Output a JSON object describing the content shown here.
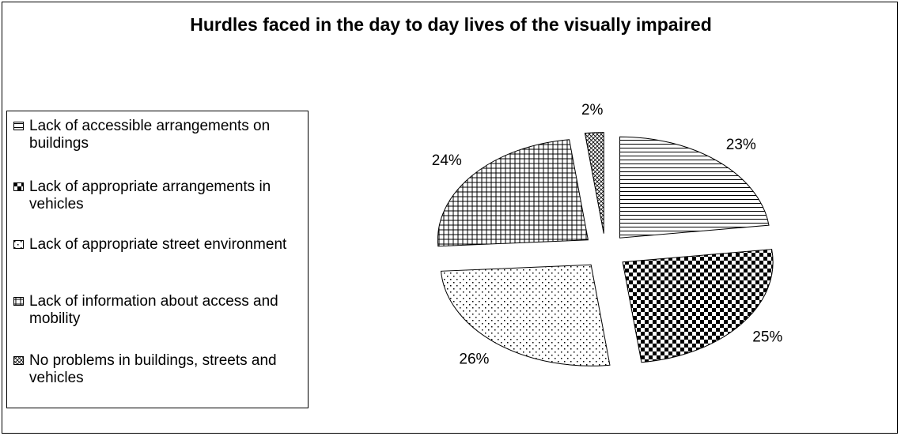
{
  "chart_data": {
    "type": "pie",
    "title": "Hurdles faced in the day to day lives of the visually impaired",
    "categories": [
      "Lack of accessible arrangements on buildings",
      "Lack of appropriate arrangements in vehicles",
      "Lack of appropriate street environment",
      "Lack of information about access and mobility",
      "No problems in buildings, streets and vehicles"
    ],
    "values": [
      23,
      25,
      26,
      24,
      2
    ],
    "value_labels": [
      "23%",
      "25%",
      "26%",
      "24%",
      "2%"
    ],
    "color": "#000000",
    "legend": "left"
  }
}
